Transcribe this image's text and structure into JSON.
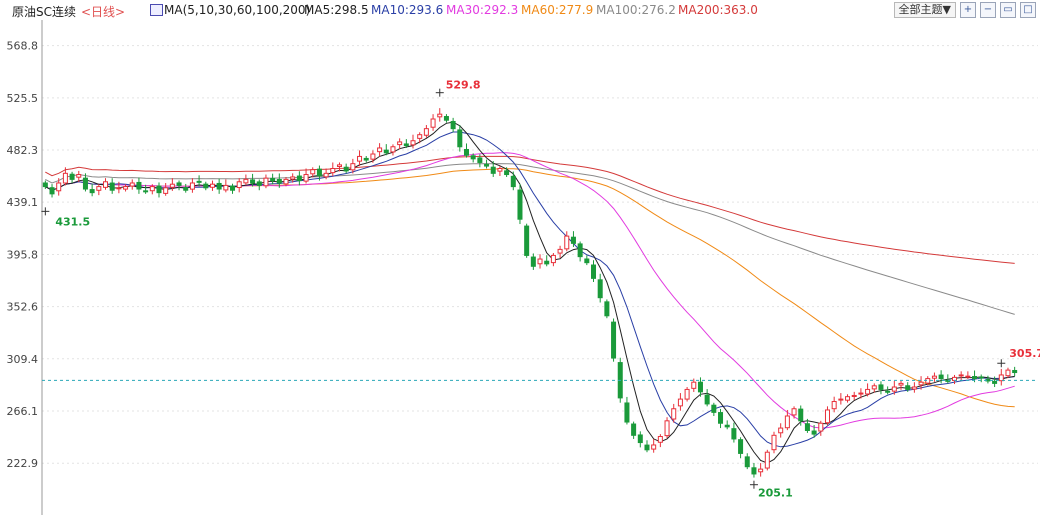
{
  "header": {
    "symbol": "原油SC连续",
    "period": "<日线>",
    "ma_icon": "ma-indicator-icon",
    "ma_label": "MA(5,10,30,60,100,200)",
    "ma5": "MA5:298.5",
    "ma10": "MA10:293.6",
    "ma30": "MA30:292.3",
    "ma60": "MA60:277.9",
    "ma100": "MA100:276.2",
    "ma200": "MA200:363.0",
    "theme_button": "全部主题▼",
    "tools": [
      "zoom-in-icon",
      "zoom-out-icon",
      "restore-icon",
      "maximize-icon"
    ]
  },
  "colors": {
    "up": "#e8303a",
    "down": "#1a9a3a",
    "ma5": "#222222",
    "ma10": "#2a3fa6",
    "ma30": "#e23be0",
    "ma60": "#f08a16",
    "ma100": "#8a8a8a",
    "ma200": "#d43a3a",
    "crosshair": "#2aa8b8",
    "grid": "#e3e3e3"
  },
  "chart_data": {
    "type": "candlestick",
    "title": "原油SC连续",
    "period": "日线",
    "y_ticks": [
      "568.8",
      "525.5",
      "482.3",
      "439.1",
      "395.8",
      "352.6",
      "309.4",
      "266.1",
      "222.9"
    ],
    "ylim": [
      180,
      590
    ],
    "horizontal_marker": 291.5,
    "annotations": [
      {
        "text": "529.8",
        "type": "high",
        "at": "left-peak"
      },
      {
        "text": "431.5",
        "type": "low",
        "at": "start"
      },
      {
        "text": "205.1",
        "type": "low",
        "at": "trough"
      },
      {
        "text": "305.7",
        "type": "high",
        "at": "end"
      }
    ],
    "closes": [
      452,
      446,
      455,
      463,
      458,
      462,
      450,
      447,
      452,
      456,
      449,
      451,
      452,
      455,
      450,
      448,
      452,
      447,
      451,
      454,
      453,
      449,
      455,
      456,
      451,
      454,
      450,
      453,
      449,
      456,
      458,
      455,
      453,
      459,
      457,
      455,
      458,
      460,
      457,
      462,
      466,
      461,
      463,
      467,
      470,
      465,
      471,
      477,
      474,
      479,
      484,
      480,
      485,
      489,
      486,
      490,
      495,
      500,
      508,
      512,
      507,
      500,
      485,
      478,
      475,
      472,
      469,
      463,
      467,
      462,
      452,
      425,
      395,
      386,
      392,
      388,
      395,
      400,
      411,
      405,
      394,
      389,
      376,
      360,
      345,
      310,
      277,
      257,
      246,
      240,
      234,
      238,
      245,
      258,
      268,
      276,
      284,
      290,
      282,
      272,
      265,
      256,
      253,
      243,
      231,
      220,
      214,
      218,
      232,
      246,
      252,
      262,
      268,
      258,
      250,
      247,
      256,
      267,
      274,
      276,
      278,
      279,
      281,
      284,
      287,
      284,
      282,
      286,
      289,
      284,
      286,
      290,
      293,
      295,
      293,
      291,
      294,
      296,
      295,
      293,
      294,
      291,
      289,
      296,
      300,
      298
    ],
    "ma_series": [
      {
        "name": "MA5",
        "value": 298.5
      },
      {
        "name": "MA10",
        "value": 293.6
      },
      {
        "name": "MA30",
        "value": 292.3
      },
      {
        "name": "MA60",
        "value": 277.9
      },
      {
        "name": "MA100",
        "value": 276.2
      },
      {
        "name": "MA200",
        "value": 363.0
      }
    ]
  }
}
